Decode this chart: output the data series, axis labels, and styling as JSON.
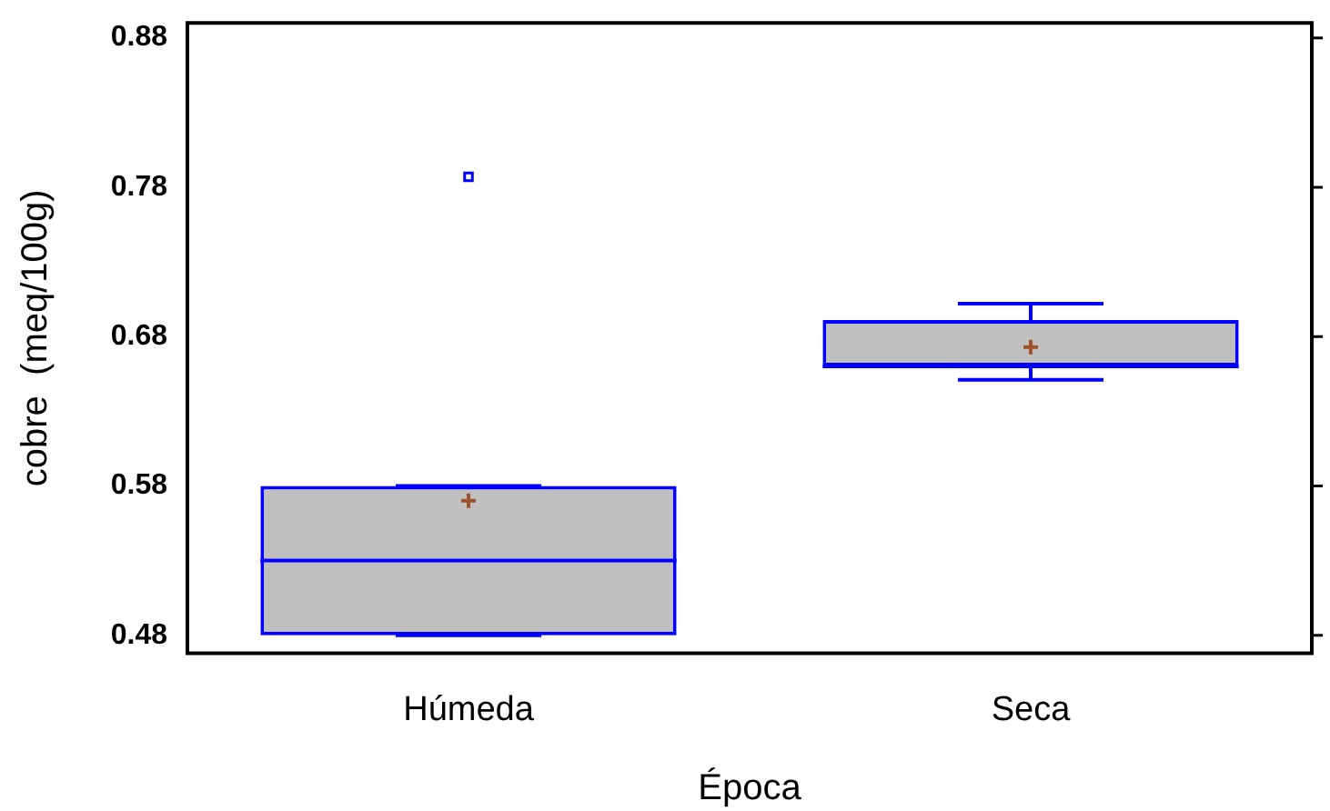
{
  "chart_data": {
    "type": "box",
    "xlabel": "Época",
    "ylabel": "cobre  (meq/100g)",
    "categories": [
      "Húmeda",
      "Seca"
    ],
    "color": "#0000ff",
    "boxes": [
      {
        "low": 0.48,
        "q1": 0.48,
        "median": 0.53,
        "q3": 0.58,
        "high": 0.58,
        "mean": 0.57,
        "outliers": [
          0.787
        ]
      },
      {
        "low": 0.651,
        "q1": 0.66,
        "median": 0.66,
        "q3": 0.691,
        "high": 0.702,
        "mean": 0.673
      }
    ],
    "ylim": [
      0.468,
      0.89
    ],
    "yticks": [
      0.48,
      0.58,
      0.68,
      0.78,
      0.88
    ],
    "grid": false,
    "legend": false
  }
}
